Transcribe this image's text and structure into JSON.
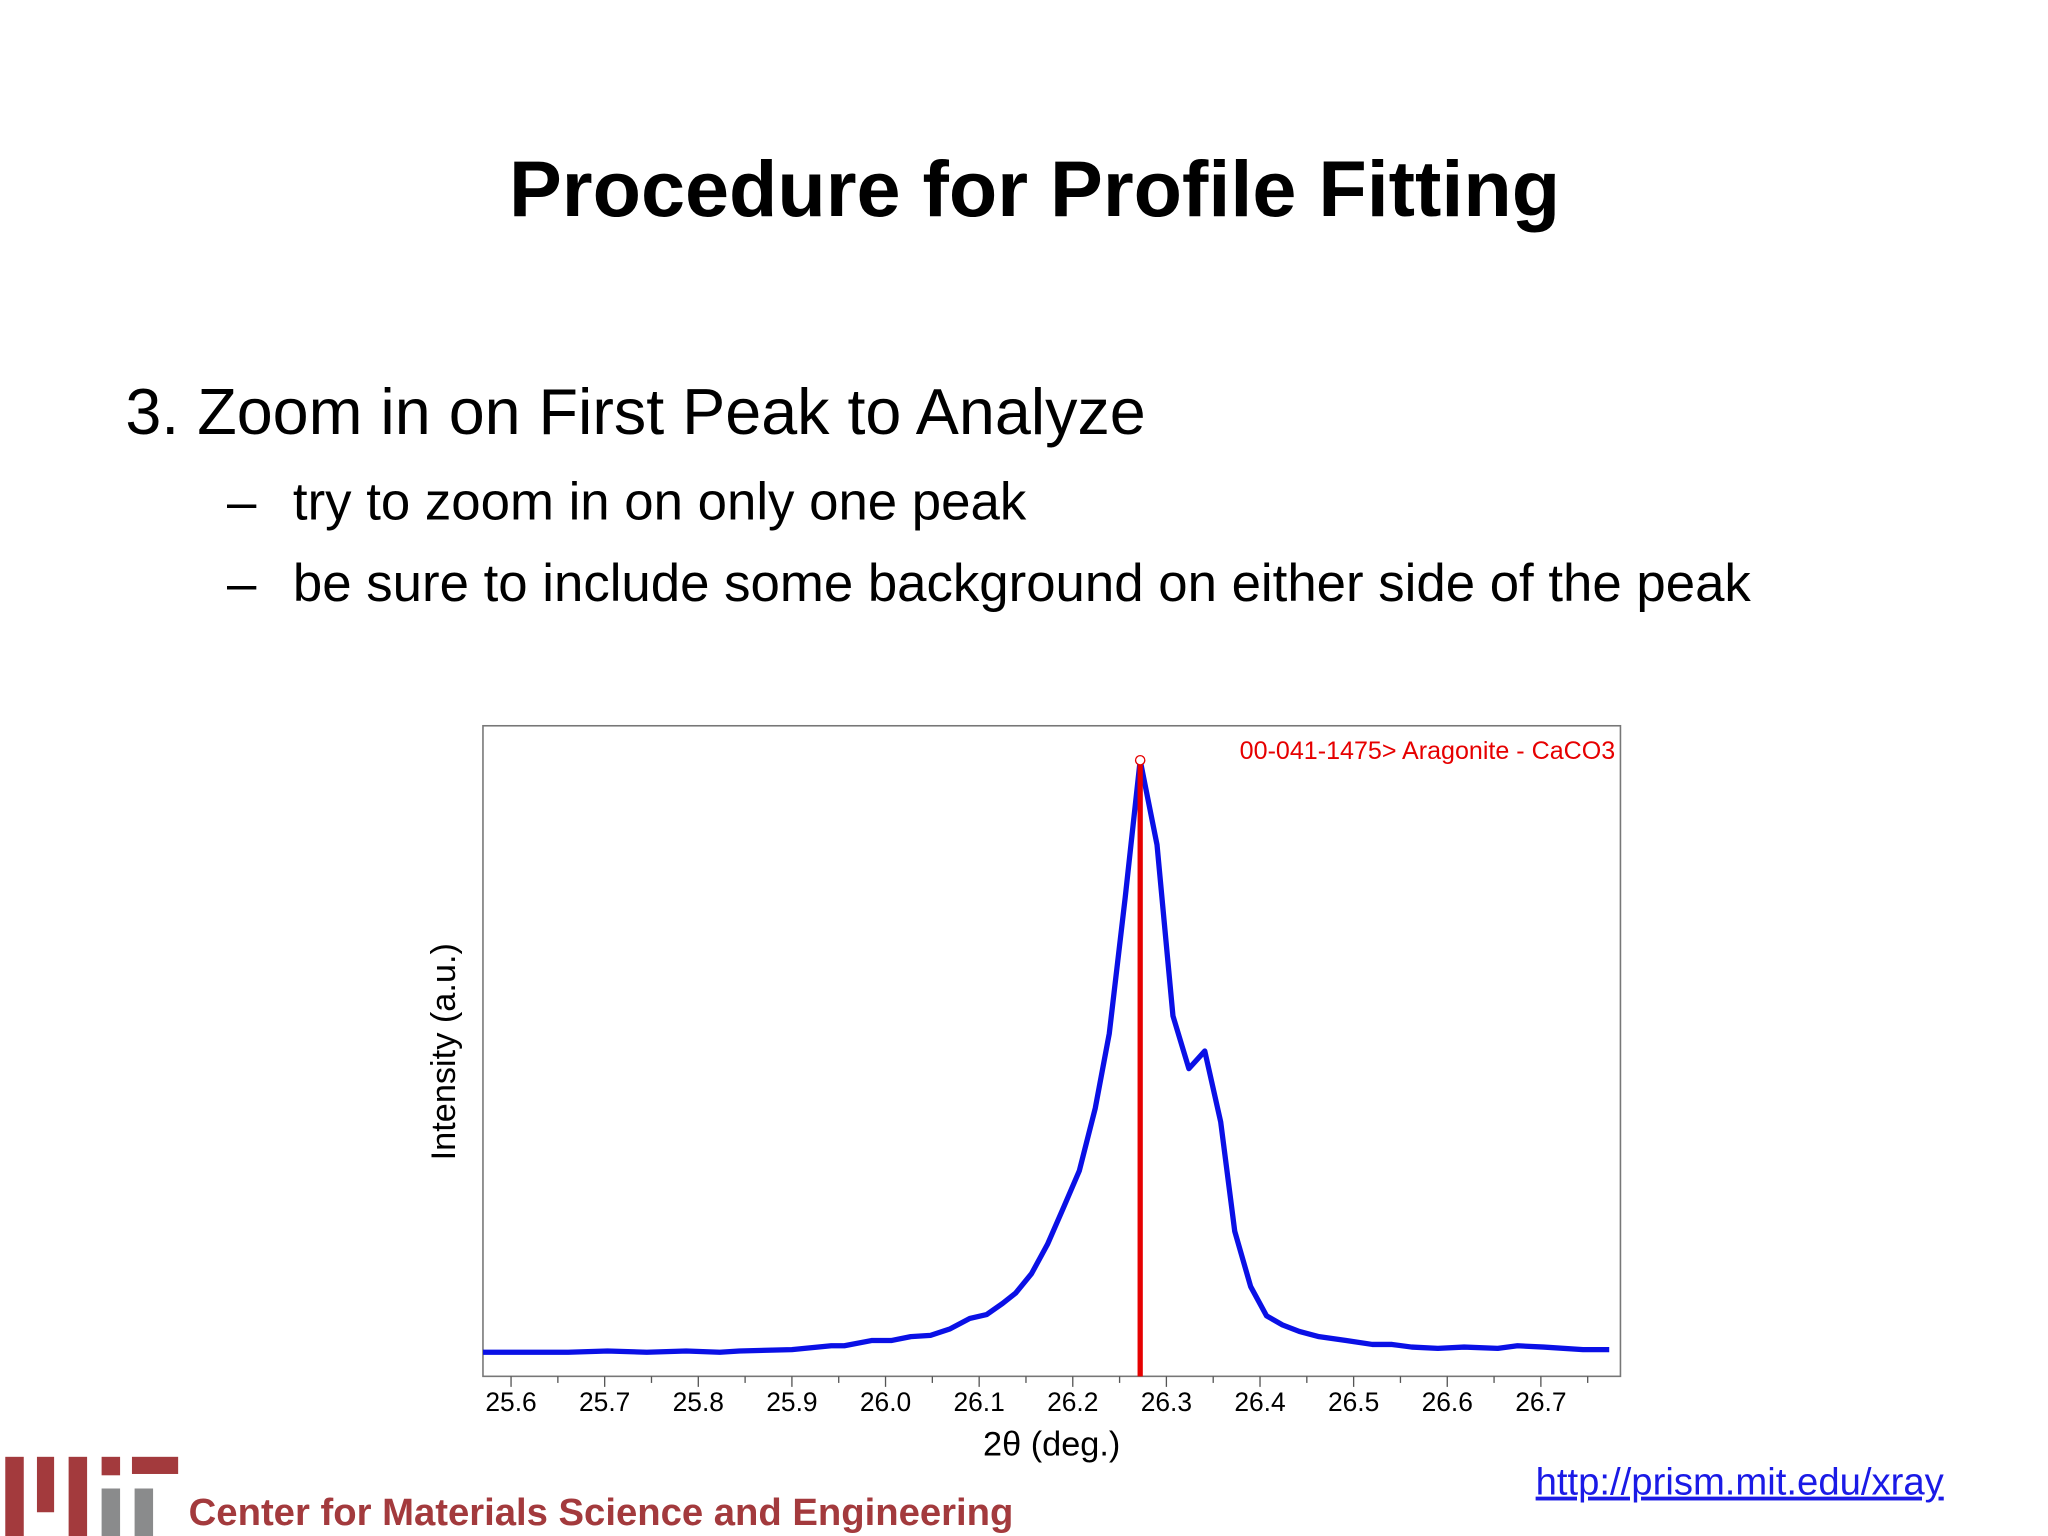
{
  "header": {
    "title": "Procedure for Profile Fitting"
  },
  "body": {
    "heading": "3. Zoom in on First Peak to Analyze",
    "bullets": [
      "try to zoom in on only one peak",
      "be sure to include some background on either side of the peak"
    ]
  },
  "chart_data": {
    "type": "line",
    "x_label": "2θ (deg.)",
    "y_label": "Intensity (a.u.)",
    "x": [
      25.57,
      25.618,
      25.661,
      25.703,
      25.745,
      25.787,
      25.823,
      25.844,
      25.9,
      25.942,
      25.956,
      25.985,
      26.006,
      26.027,
      26.048,
      26.069,
      26.09,
      26.108,
      26.125,
      26.139,
      26.156,
      26.173,
      26.19,
      26.207,
      26.224,
      26.239,
      26.256,
      26.272,
      26.29,
      26.307,
      26.324,
      26.341,
      26.358,
      26.373,
      26.39,
      26.407,
      26.424,
      26.442,
      26.463,
      26.492,
      26.52,
      26.541,
      26.562,
      26.59,
      26.618,
      26.654,
      26.675,
      26.703,
      26.745,
      26.773
    ],
    "series": [
      {
        "color": "#0a10e6",
        "values": [
          3.7,
          3.7,
          3.7,
          3.9,
          3.7,
          3.9,
          3.7,
          3.9,
          4.1,
          4.7,
          4.7,
          5.5,
          5.5,
          6.1,
          6.3,
          7.3,
          8.9,
          9.5,
          11.2,
          12.8,
          15.8,
          20.3,
          25.9,
          31.6,
          41.2,
          52.7,
          73.6,
          94.7,
          81.7,
          55.4,
          47.3,
          50.0,
          39.1,
          22.3,
          13.8,
          9.3,
          7.9,
          6.9,
          6.1,
          5.5,
          4.9,
          4.9,
          4.5,
          4.3,
          4.5,
          4.3,
          4.7,
          4.5,
          4.1,
          4.1
        ]
      }
    ],
    "reference": {
      "label": "00-041-1475> Aragonite - CaCO3",
      "x": 26.272,
      "value": 94.7,
      "color": "#e60000"
    },
    "xlim": [
      25.57,
      26.785
    ],
    "ylim": [
      0,
      100
    ],
    "xticks": [
      25.6,
      25.7,
      25.8,
      25.9,
      {
        "value": 26,
        "label": "26.0"
      },
      26.1,
      26.2,
      26.3,
      26.4,
      26.5,
      26.6,
      26.7
    ],
    "xminorticks": [
      25.65,
      25.75,
      25.85,
      25.95,
      26.05,
      26.15,
      26.25,
      26.35,
      26.45,
      26.55,
      26.65,
      26.75
    ]
  },
  "footer": {
    "org": "Center for Materials Science and Engineering",
    "url": "http://prism.mit.edu/xray"
  }
}
